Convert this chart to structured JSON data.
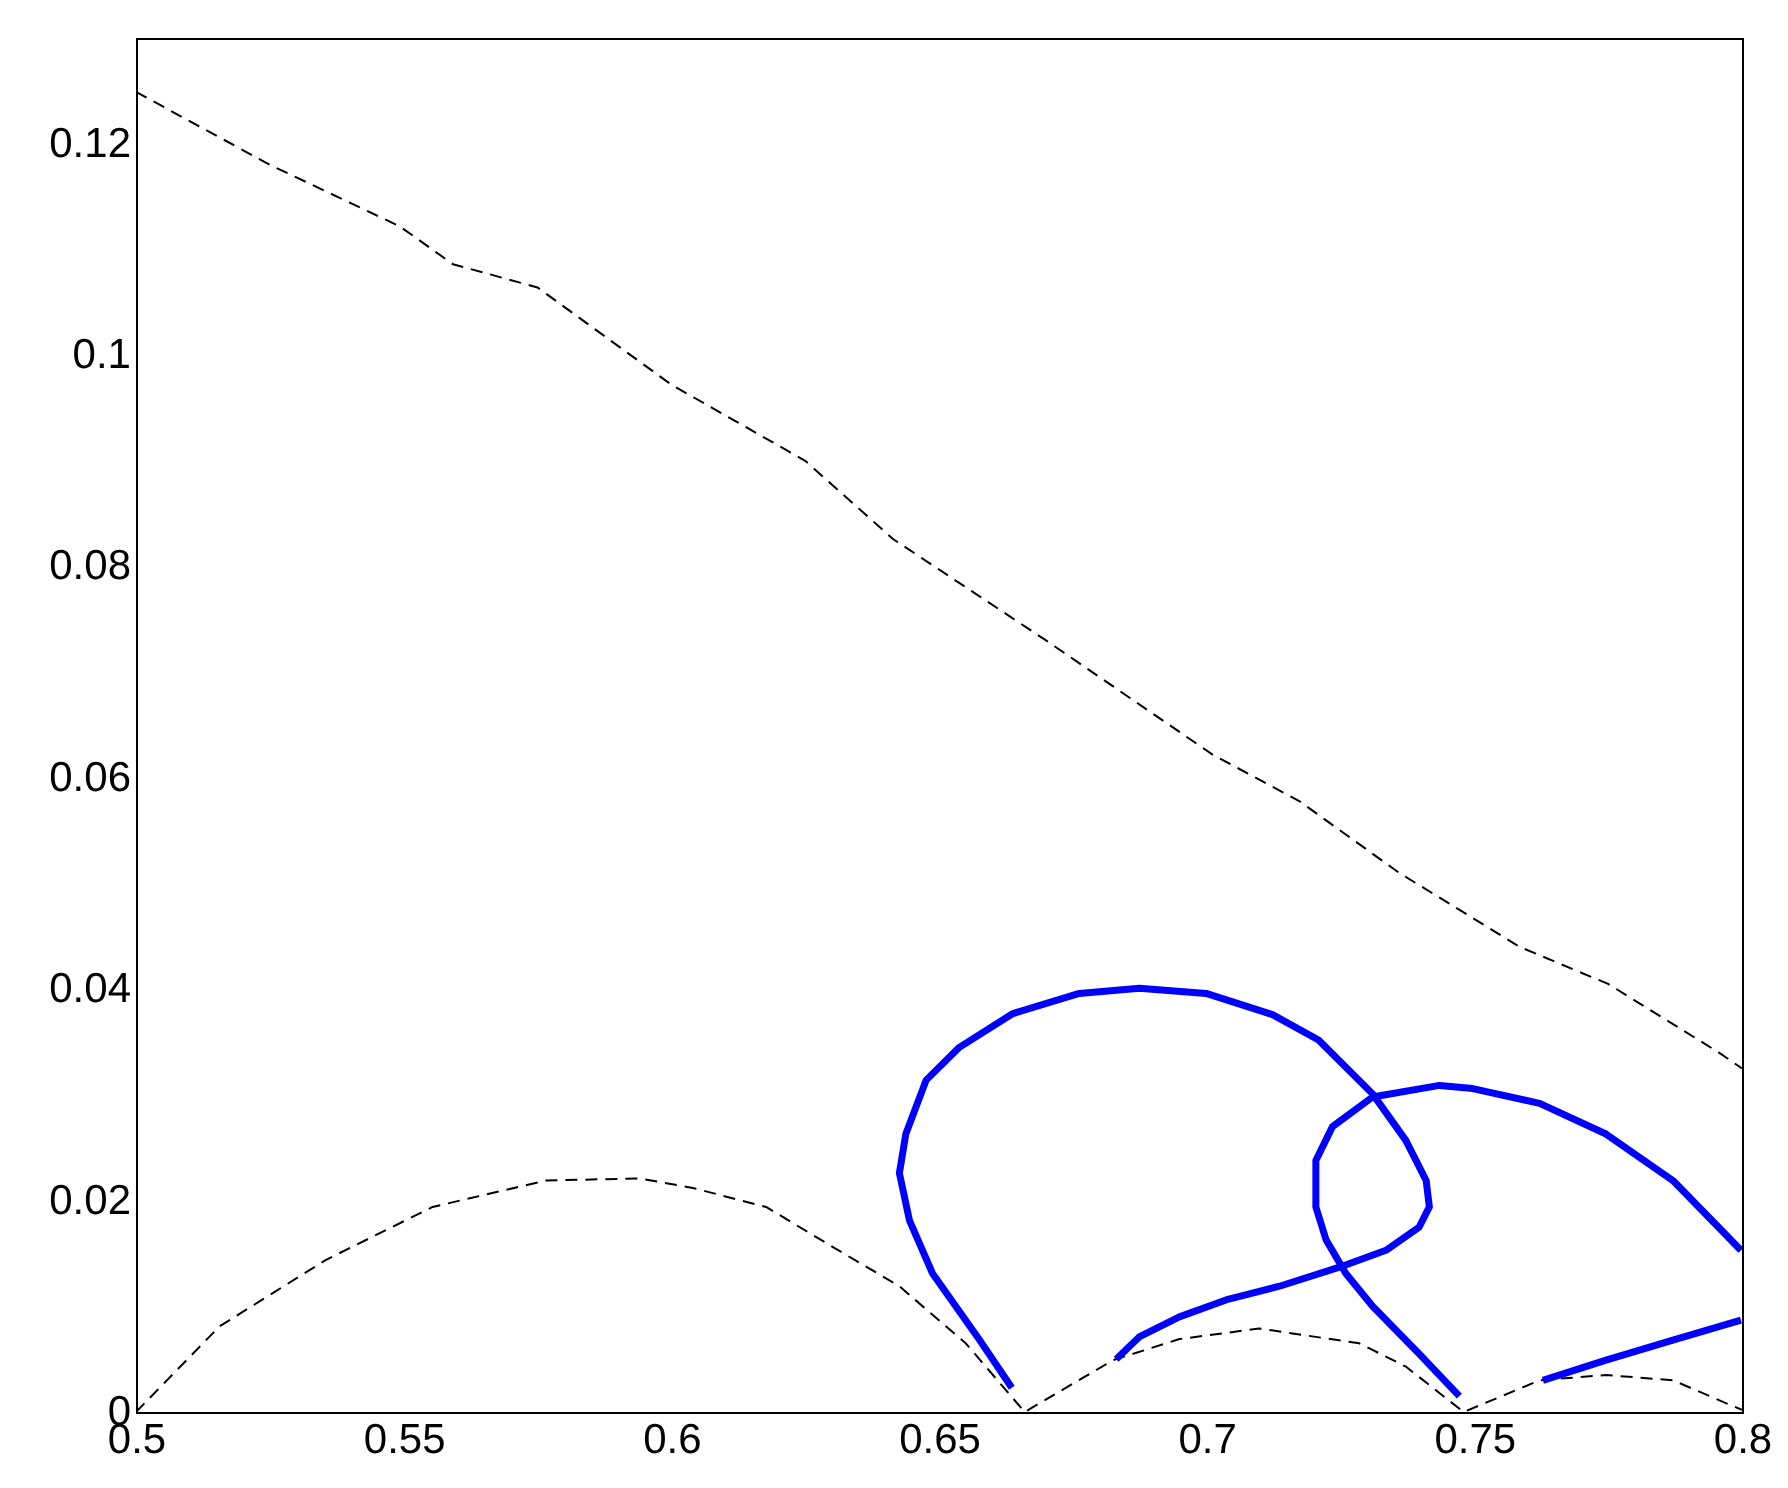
{
  "chart_data": {
    "type": "line",
    "xlim": [
      0.5,
      0.8
    ],
    "ylim": [
      0,
      0.13
    ],
    "xticks": [
      0.5,
      0.55,
      0.6,
      0.65,
      0.7,
      0.75,
      0.8
    ],
    "yticks": [
      0,
      0.02,
      0.04,
      0.06,
      0.08,
      0.1,
      0.12
    ],
    "series": [
      {
        "color": "#000000",
        "line_style": "dashed",
        "x": [
          0.5,
          0.525,
          0.5492,
          0.5592,
          0.575,
          0.6,
          0.625,
          0.6414,
          0.67,
          0.7011,
          0.7173,
          0.736,
          0.7585,
          0.775,
          0.7957,
          0.8
        ],
        "values": [
          0.1249,
          0.118,
          0.1122,
          0.1086,
          0.1064,
          0.0972,
          0.09,
          0.0826,
          0.073,
          0.0622,
          0.0578,
          0.051,
          0.044,
          0.0405,
          0.034,
          0.0325
        ]
      },
      {
        "color": "#000000",
        "line_style": "dashed",
        "x": [
          0.5,
          0.5156,
          0.5355,
          0.5554,
          0.5766,
          0.594,
          0.604,
          0.6177,
          0.6302,
          0.6426,
          0.655,
          0.666,
          0.6825,
          0.6949,
          0.7098,
          0.7285,
          0.7372,
          0.748,
          0.7622,
          0.7746,
          0.7871,
          0.7958,
          0.8
        ],
        "values": [
          0,
          0.0081,
          0.0144,
          0.0194,
          0.0219,
          0.0221,
          0.0212,
          0.0194,
          0.0156,
          0.0119,
          0.0065,
          0,
          0.0049,
          0.0069,
          0.0079,
          0.0065,
          0.0043,
          0,
          0.003,
          0.0035,
          0.003,
          0.0011,
          0.0002
        ]
      },
      {
        "color": "#0000ff",
        "line_style": "solid",
        "x": [
          0.6636,
          0.6576,
          0.6488,
          0.6445,
          0.6426,
          0.6438,
          0.6476,
          0.6538,
          0.6638,
          0.6762,
          0.6874,
          0.6999,
          0.7123,
          0.7209,
          0.731,
          0.7372,
          0.741,
          0.7416,
          0.7397,
          0.7335,
          0.7248,
          0.7136,
          0.7036,
          0.6949,
          0.6874,
          0.6831
        ],
        "values": [
          0.0023,
          0.0068,
          0.0131,
          0.0181,
          0.0226,
          0.0263,
          0.0314,
          0.0345,
          0.0377,
          0.0396,
          0.0401,
          0.0396,
          0.0376,
          0.0352,
          0.0301,
          0.0257,
          0.0219,
          0.0194,
          0.0175,
          0.0153,
          0.0137,
          0.0119,
          0.0106,
          0.009,
          0.0071,
          0.005
        ]
      },
      {
        "color": "#0000ff",
        "line_style": "solid",
        "x": [
          0.7472,
          0.7397,
          0.731,
          0.726,
          0.7223,
          0.7204,
          0.7204,
          0.7235,
          0.731,
          0.7435,
          0.7497,
          0.7622,
          0.7746,
          0.7871,
          0.7998
        ],
        "values": [
          0.0015,
          0.0055,
          0.01,
          0.0131,
          0.0163,
          0.0194,
          0.0238,
          0.027,
          0.0298,
          0.0309,
          0.0306,
          0.0292,
          0.0263,
          0.0219,
          0.0153
        ]
      },
      {
        "color": "#0000ff",
        "line_style": "solid",
        "x": [
          0.7628,
          0.7746,
          0.7871,
          0.7998
        ],
        "values": [
          0.003,
          0.0049,
          0.0068,
          0.0087
        ]
      }
    ]
  }
}
